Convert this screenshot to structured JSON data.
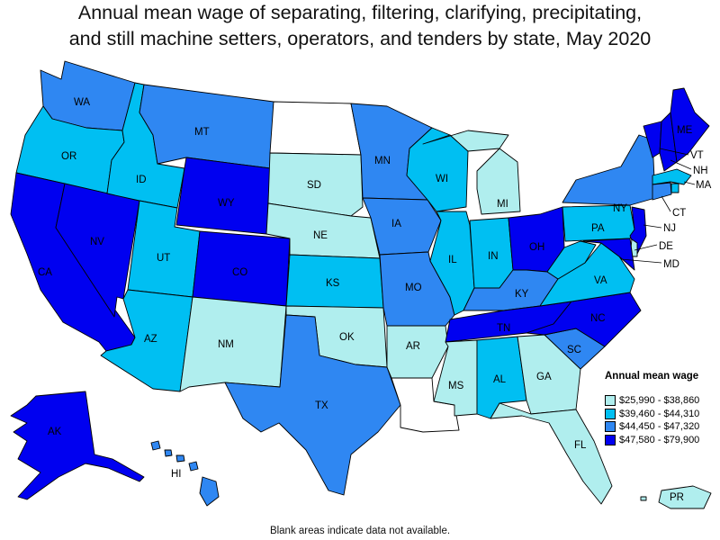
{
  "title_line1": "Annual mean wage of separating, filtering, clarifying, precipitating,",
  "title_line2": "and still machine setters, operators, and tenders by state, May 2020",
  "footnote": "Blank areas indicate data not available.",
  "legend": {
    "title": "Annual mean wage",
    "items": [
      {
        "label": "$25,990 - $38,860",
        "color": "#b0eeee"
      },
      {
        "label": "$39,460 - $44,310",
        "color": "#00bff2"
      },
      {
        "label": "$44,450 - $47,320",
        "color": "#2f87f2"
      },
      {
        "label": "$47,580 - $79,900",
        "color": "#0000f0"
      }
    ]
  },
  "no_data_color": "#ffffff",
  "states": {
    "WA": 3,
    "OR": 2,
    "CA": 4,
    "NV": 4,
    "ID": 2,
    "MT": 3,
    "WY": 4,
    "UT": 2,
    "AZ": 2,
    "CO": 4,
    "NM": 1,
    "ND": 0,
    "SD": 1,
    "NE": 1,
    "KS": 2,
    "OK": 1,
    "TX": 3,
    "MN": 3,
    "IA": 3,
    "MO": 3,
    "AR": 1,
    "LA": 0,
    "WI": 2,
    "IL": 2,
    "MI": 1,
    "IN": 2,
    "OH": 4,
    "KY": 3,
    "TN": 4,
    "MS": 1,
    "AL": 2,
    "GA": 1,
    "FL": 1,
    "SC": 3,
    "NC": 4,
    "VA": 2,
    "WV": 2,
    "PA": 2,
    "NY": 3,
    "VT": 4,
    "NH": 4,
    "ME": 4,
    "MA": 2,
    "RI": 2,
    "CT": 3,
    "NJ": 4,
    "DE": 1,
    "MD": 4,
    "AK": 4,
    "HI": 3,
    "PR": 1
  },
  "state_labels": {
    "WA": "WA",
    "OR": "OR",
    "CA": "CA",
    "NV": "NV",
    "ID": "ID",
    "MT": "MT",
    "WY": "WY",
    "UT": "UT",
    "AZ": "AZ",
    "CO": "CO",
    "NM": "NM",
    "SD": "SD",
    "NE": "NE",
    "KS": "KS",
    "OK": "OK",
    "TX": "TX",
    "MN": "MN",
    "IA": "IA",
    "MO": "MO",
    "AR": "AR",
    "WI": "WI",
    "IL": "IL",
    "MI": "MI",
    "IN": "IN",
    "OH": "OH",
    "KY": "KY",
    "TN": "TN",
    "MS": "MS",
    "AL": "AL",
    "GA": "GA",
    "FL": "FL",
    "SC": "SC",
    "NC": "NC",
    "VA": "VA",
    "PA": "PA",
    "NY": "NY",
    "ME": "ME",
    "VT": "VT",
    "NH": "NH",
    "MA": "MA",
    "CT": "CT",
    "NJ": "NJ",
    "DE": "DE",
    "MD": "MD",
    "AK": "AK",
    "HI": "HI",
    "PR": "PR"
  }
}
